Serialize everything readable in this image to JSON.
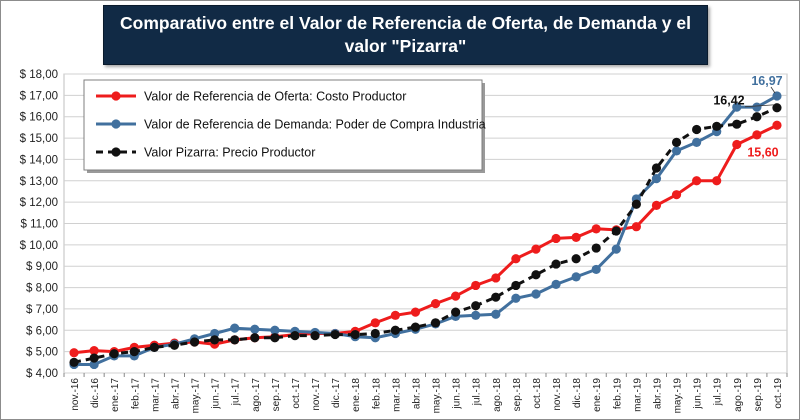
{
  "chart_data": {
    "type": "line",
    "title": "Comparativo entre el Valor de Referencia de Oferta, de Demanda y el valor \"Pizarra\"",
    "categories": [
      "nov.-16",
      "dic.-16",
      "ene.-17",
      "feb.-17",
      "mar.-17",
      "abr.-17",
      "may.-17",
      "jun.-17",
      "jul.-17",
      "ago.-17",
      "sep.-17",
      "oct.-17",
      "nov.-17",
      "dic.-17",
      "ene.-18",
      "feb.-18",
      "mar.-18",
      "abr.-18",
      "may.-18",
      "jun.-18",
      "jul.-18",
      "ago.-18",
      "sep.-18",
      "oct.-18",
      "nov.-18",
      "dic.-18",
      "ene.-19",
      "feb.-19",
      "mar.-19",
      "abr.-19",
      "may.-19",
      "jun.-19",
      "jul.-19",
      "ago.-19",
      "sep.-19",
      "oct.-19"
    ],
    "ylim": [
      4.0,
      18.0
    ],
    "y_ticks": [
      "$ 4,00",
      "$ 5,00",
      "$ 6,00",
      "$ 7,00",
      "$ 8,00",
      "$ 9,00",
      "$ 10,00",
      "$ 11,00",
      "$ 12,00",
      "$ 13,00",
      "$ 14,00",
      "$ 15,00",
      "$ 16,00",
      "$ 17,00",
      "$ 18,00"
    ],
    "grid": true,
    "legend_position": "top-left",
    "series": [
      {
        "name": "Valor de Referencia de Oferta: Costo Productor",
        "color": "#ee1c1c",
        "style": "solid",
        "values": [
          4.95,
          5.05,
          5.0,
          5.2,
          5.3,
          5.4,
          5.45,
          5.35,
          5.55,
          5.65,
          5.7,
          5.8,
          5.85,
          5.85,
          5.95,
          6.35,
          6.7,
          6.85,
          7.25,
          7.6,
          8.1,
          8.45,
          9.35,
          9.8,
          10.3,
          10.35,
          10.75,
          10.7,
          10.85,
          11.85,
          12.35,
          13.0,
          13.0,
          14.7,
          15.15,
          15.6
        ]
      },
      {
        "name": "Valor de Referencia de Demanda: Poder de Compra Industria",
        "color": "#41709e",
        "style": "solid",
        "values": [
          4.4,
          4.4,
          4.8,
          4.8,
          5.2,
          5.35,
          5.6,
          5.85,
          6.1,
          6.05,
          6.0,
          5.95,
          5.9,
          5.85,
          5.7,
          5.65,
          5.85,
          6.05,
          6.3,
          6.65,
          6.7,
          6.75,
          7.5,
          7.7,
          8.15,
          8.5,
          8.85,
          9.8,
          12.15,
          13.1,
          14.4,
          14.8,
          15.3,
          16.45,
          16.45,
          16.97
        ]
      },
      {
        "name": "Valor Pizarra: Precio Productor",
        "color": "#111111",
        "style": "dashed",
        "values": [
          4.5,
          4.7,
          4.9,
          5.0,
          5.2,
          5.3,
          5.45,
          5.55,
          5.55,
          5.65,
          5.65,
          5.75,
          5.75,
          5.8,
          5.8,
          5.85,
          6.0,
          6.15,
          6.35,
          6.85,
          7.15,
          7.55,
          8.1,
          8.6,
          9.1,
          9.35,
          9.85,
          10.65,
          11.9,
          13.6,
          14.8,
          15.4,
          15.55,
          15.65,
          16.0,
          16.42
        ]
      }
    ],
    "annotations": [
      {
        "text": "16,97",
        "series": 1,
        "color": "#41709e"
      },
      {
        "text": "16,42",
        "series": 2,
        "color": "#111111"
      },
      {
        "text": "15,60",
        "series": 0,
        "color": "#ee1c1c"
      }
    ]
  }
}
